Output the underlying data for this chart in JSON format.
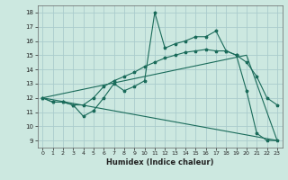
{
  "xlabel": "Humidex (Indice chaleur)",
  "bg_color": "#cce8e0",
  "grid_color": "#aacccc",
  "line_color": "#1a6b5a",
  "xlim": [
    -0.5,
    23.5
  ],
  "ylim": [
    8.5,
    18.5
  ],
  "xticks": [
    0,
    1,
    2,
    3,
    4,
    5,
    6,
    7,
    8,
    9,
    10,
    11,
    12,
    13,
    14,
    15,
    16,
    17,
    18,
    19,
    20,
    21,
    22,
    23
  ],
  "yticks": [
    9,
    10,
    11,
    12,
    13,
    14,
    15,
    16,
    17,
    18
  ],
  "line1_x": [
    0,
    1,
    2,
    3,
    4,
    5,
    6,
    7,
    8,
    9,
    10,
    11,
    12,
    13,
    14,
    15,
    16,
    17,
    18,
    19,
    20,
    21,
    22,
    23
  ],
  "line1_y": [
    12,
    11.7,
    11.7,
    11.5,
    10.7,
    11.1,
    12.0,
    13.0,
    12.5,
    12.8,
    13.2,
    18.0,
    15.5,
    15.8,
    16.0,
    16.3,
    16.3,
    16.7,
    15.3,
    15.0,
    12.5,
    9.5,
    9.0,
    9.0
  ],
  "line2_x": [
    0,
    1,
    2,
    3,
    4,
    5,
    6,
    7,
    8,
    9,
    10,
    11,
    12,
    13,
    14,
    15,
    16,
    17,
    18,
    19,
    20,
    21,
    22,
    23
  ],
  "line2_y": [
    12,
    11.7,
    11.7,
    11.5,
    11.5,
    12.0,
    12.8,
    13.2,
    13.5,
    13.8,
    14.2,
    14.5,
    14.8,
    15.0,
    15.2,
    15.3,
    15.4,
    15.3,
    15.3,
    15.0,
    14.5,
    13.5,
    12.0,
    11.5
  ],
  "line3_x": [
    0,
    23
  ],
  "line3_y": [
    12,
    9.0
  ],
  "line4_x": [
    0,
    20,
    23
  ],
  "line4_y": [
    12,
    15.0,
    9.0
  ]
}
